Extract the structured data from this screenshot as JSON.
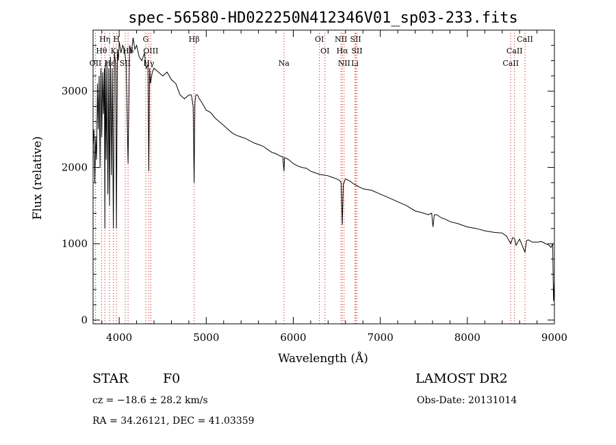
{
  "chart_data": {
    "type": "line",
    "title": "spec-56580-HD022250N412346V01_sp03-233.fits",
    "xlabel": "Wavelength (Å)",
    "ylabel": "Flux (relative)",
    "xlim": [
      3700,
      9000
    ],
    "ylim": [
      -50,
      3800
    ],
    "x_ticks": [
      4000,
      5000,
      6000,
      7000,
      8000,
      9000
    ],
    "y_ticks": [
      0,
      1000,
      2000,
      3000
    ],
    "grid": false,
    "series": [
      {
        "color": "#000000",
        "x": [
          3700,
          3710,
          3720,
          3730,
          3740,
          3750,
          3760,
          3770,
          3780,
          3790,
          3800,
          3810,
          3820,
          3830,
          3835,
          3840,
          3850,
          3860,
          3870,
          3880,
          3889,
          3900,
          3910,
          3920,
          3933,
          3945,
          3960,
          3968,
          3980,
          3990,
          4000,
          4020,
          4040,
          4060,
          4080,
          4102,
          4120,
          4140,
          4160,
          4180,
          4200,
          4230,
          4260,
          4290,
          4310,
          4330,
          4340,
          4350,
          4360,
          4380,
          4400,
          4450,
          4500,
          4550,
          4600,
          4650,
          4700,
          4750,
          4800,
          4830,
          4850,
          4861,
          4870,
          4880,
          4900,
          4920,
          4950,
          5000,
          5050,
          5100,
          5150,
          5200,
          5250,
          5300,
          5350,
          5400,
          5450,
          5500,
          5550,
          5600,
          5650,
          5700,
          5750,
          5800,
          5850,
          5880,
          5893,
          5900,
          5950,
          6000,
          6050,
          6100,
          6150,
          6200,
          6250,
          6300,
          6350,
          6400,
          6450,
          6500,
          6530,
          6550,
          6563,
          6575,
          6600,
          6650,
          6700,
          6750,
          6800,
          6900,
          7000,
          7100,
          7200,
          7300,
          7400,
          7500,
          7550,
          7590,
          7605,
          7620,
          7650,
          7700,
          7750,
          7800,
          7900,
          8000,
          8100,
          8200,
          8300,
          8400,
          8450,
          8498,
          8520,
          8542,
          8560,
          8600,
          8662,
          8680,
          8700,
          8750,
          8800,
          8850,
          8900,
          8940,
          8960,
          8980,
          8990,
          9000
        ],
        "y": [
          2300,
          2500,
          1800,
          2400,
          2100,
          3100,
          2500,
          3200,
          2000,
          3300,
          2400,
          3250,
          2700,
          3300,
          1200,
          3350,
          2100,
          3400,
          1650,
          3300,
          1500,
          3450,
          1900,
          3300,
          1200,
          3500,
          3350,
          1200,
          3550,
          3400,
          3650,
          3500,
          3600,
          3550,
          3350,
          2050,
          3600,
          3500,
          3700,
          3550,
          3600,
          3450,
          3400,
          3500,
          3300,
          3350,
          1950,
          3300,
          3100,
          3250,
          3300,
          3250,
          3200,
          3250,
          3150,
          3100,
          2950,
          2900,
          2950,
          2950,
          2800,
          1800,
          2850,
          2950,
          2950,
          2900,
          2850,
          2750,
          2720,
          2650,
          2600,
          2550,
          2500,
          2450,
          2420,
          2400,
          2380,
          2350,
          2320,
          2300,
          2280,
          2240,
          2200,
          2180,
          2150,
          2140,
          1950,
          2130,
          2100,
          2050,
          2020,
          2000,
          1990,
          1950,
          1930,
          1910,
          1900,
          1890,
          1870,
          1850,
          1830,
          1800,
          1250,
          1780,
          1850,
          1820,
          1780,
          1750,
          1720,
          1700,
          1650,
          1600,
          1550,
          1500,
          1430,
          1400,
          1380,
          1400,
          1220,
          1380,
          1380,
          1340,
          1320,
          1290,
          1260,
          1220,
          1200,
          1170,
          1150,
          1140,
          1100,
          1000,
          1080,
          1070,
          980,
          1060,
          890,
          1040,
          1050,
          1020,
          1020,
          1030,
          1000,
          980,
          950,
          1000,
          250,
          500
        ]
      }
    ],
    "line_markers": [
      {
        "label": "Hη",
        "wavelength": 3835,
        "row": 1,
        "color": "#cc0000"
      },
      {
        "label": "Hθ",
        "wavelength": 3797,
        "row": 2,
        "color": "#cc0000"
      },
      {
        "label": "OII",
        "wavelength": 3727,
        "row": 3,
        "color": "#cc0000"
      },
      {
        "label": "Hε",
        "wavelength": 3889,
        "row": 3,
        "color": "#cc0000"
      },
      {
        "label": "K",
        "wavelength": 3934,
        "row": 2,
        "color": "#cc0000"
      },
      {
        "label": "H",
        "wavelength": 3969,
        "row": 1,
        "color": "#cc0000"
      },
      {
        "label": "SII",
        "wavelength": 4069,
        "row": 3,
        "color": "#cc0000"
      },
      {
        "label": "Hδ",
        "wavelength": 4102,
        "row": 2,
        "color": "#cc0000"
      },
      {
        "label": "G",
        "wavelength": 4305,
        "row": 1,
        "color": "#cc0000"
      },
      {
        "label": "OIII",
        "wavelength": 4363,
        "row": 2,
        "color": "#cc0000"
      },
      {
        "label": "Hγ",
        "wavelength": 4340,
        "row": 3,
        "color": "#cc0000"
      },
      {
        "label": "Hβ",
        "wavelength": 4861,
        "row": 1,
        "color": "#cc0000"
      },
      {
        "label": "Na",
        "wavelength": 5893,
        "row": 3,
        "color": "#cc0000"
      },
      {
        "label": "OI",
        "wavelength": 6300,
        "row": 1,
        "color": "#cc0000"
      },
      {
        "label": "OI",
        "wavelength": 6364,
        "row": 2,
        "color": "#cc0000"
      },
      {
        "label": "NII",
        "wavelength": 6548,
        "row": 1,
        "color": "#cc0000"
      },
      {
        "label": "Hα",
        "wavelength": 6563,
        "row": 2,
        "color": "#cc0000"
      },
      {
        "label": "NII",
        "wavelength": 6584,
        "row": 3,
        "color": "#cc0000"
      },
      {
        "label": "SII",
        "wavelength": 6717,
        "row": 1,
        "color": "#cc0000"
      },
      {
        "label": "SII",
        "wavelength": 6731,
        "row": 2,
        "color": "#cc0000"
      },
      {
        "label": "Li",
        "wavelength": 6708,
        "row": 3,
        "color": "#cc0000"
      },
      {
        "label": "CaII",
        "wavelength": 8662,
        "row": 1,
        "color": "#cc0000"
      },
      {
        "label": "CaII",
        "wavelength": 8542,
        "row": 2,
        "color": "#cc0000"
      },
      {
        "label": "CaII",
        "wavelength": 8498,
        "row": 3,
        "color": "#cc0000"
      }
    ]
  },
  "info": {
    "object_class": "STAR",
    "subclass": "F0",
    "survey": "LAMOST DR2",
    "redshift": "cz = −18.6 ± 28.2 km/s",
    "obs_date": "Obs-Date: 20131014",
    "coords": "RA =  34.26121, DEC =  41.03359"
  }
}
